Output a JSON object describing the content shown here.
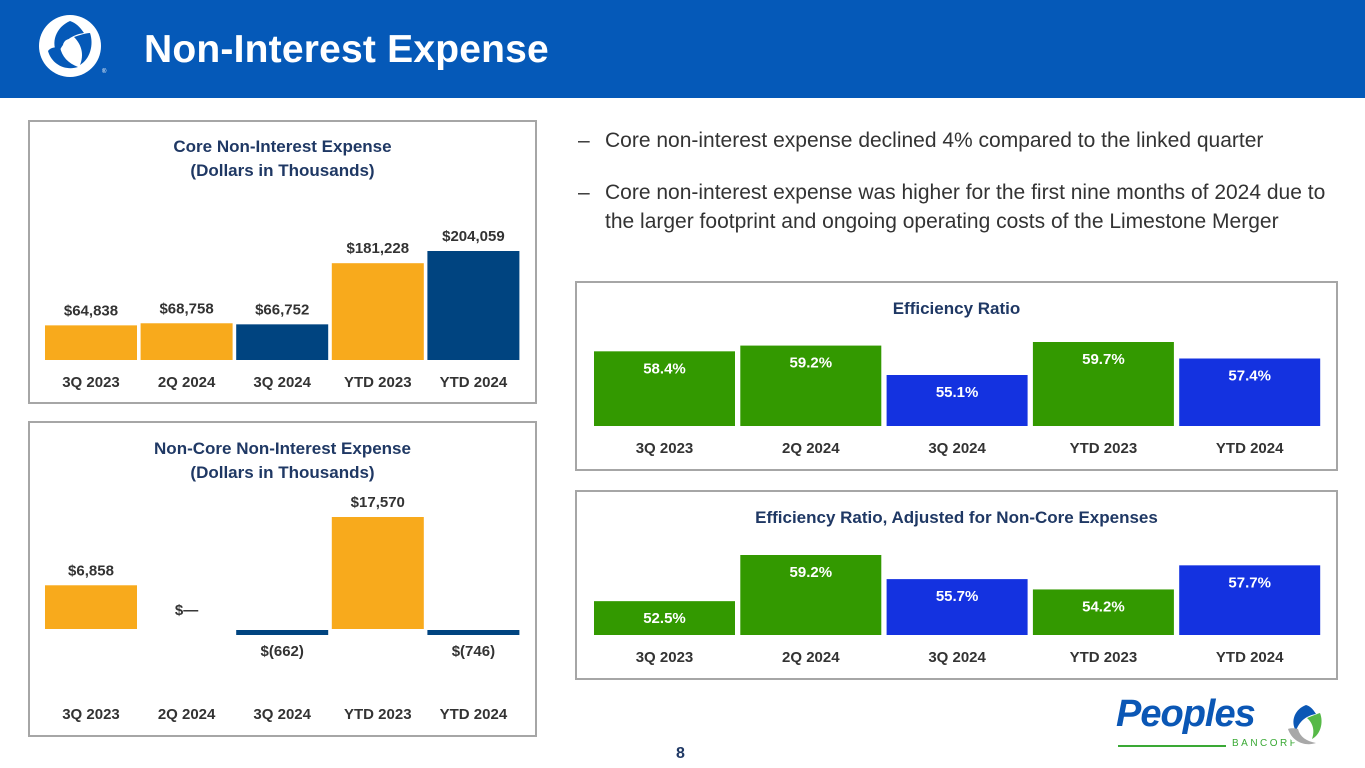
{
  "header": {
    "title": "Non-Interest Expense",
    "logo_icon": "peoples-swirl-logo-icon",
    "header_color": "#0559b8"
  },
  "bullets": [
    "Core non-interest expense declined 4% compared to the linked quarter",
    "Core non-interest expense was higher for the first nine months of 2024 due to the larger footprint and ongoing operating costs of the Limestone Merger"
  ],
  "bullet_marker": "–",
  "footer": {
    "page_number": "8",
    "brand_name": "Peoples",
    "brand_sub": "BANCORP",
    "registered_mark": "®"
  },
  "colors": {
    "gold": "#f8aa1c",
    "navy": "#004480",
    "green": "#339900",
    "blue": "#1432e0",
    "title_navy": "#1f3864",
    "label_dark": "#333333"
  },
  "chart_data": [
    {
      "id": "core",
      "type": "bar",
      "title": "Core Non-Interest Expense",
      "subtitle": "(Dollars in Thousands)",
      "xlabel": "",
      "ylabel": "",
      "categories": [
        "3Q 2023",
        "2Q 2024",
        "3Q 2024",
        "YTD 2023",
        "YTD 2024"
      ],
      "values": [
        64838,
        68758,
        66752,
        181228,
        204059
      ],
      "labels": [
        "$64,838",
        "$68,758",
        "$66,752",
        "$181,228",
        "$204,059"
      ],
      "bar_colors": [
        "gold",
        "gold",
        "navy",
        "gold",
        "navy"
      ],
      "ylim": [
        0,
        204059
      ],
      "grid": false,
      "legend": "none"
    },
    {
      "id": "noncore",
      "type": "bar",
      "title": "Non-Core Non-Interest Expense",
      "subtitle": "(Dollars in Thousands)",
      "xlabel": "",
      "ylabel": "",
      "categories": [
        "3Q 2023",
        "2Q 2024",
        "3Q 2024",
        "YTD 2023",
        "YTD 2024"
      ],
      "values": [
        6858,
        0,
        -662,
        17570,
        -746
      ],
      "labels": [
        "$6,858",
        "$—",
        "$(662)",
        "$17,570",
        "$(746)"
      ],
      "bar_colors": [
        "gold",
        "gold",
        "navy",
        "gold",
        "navy"
      ],
      "ylim": [
        -746,
        17570
      ],
      "grid": false,
      "legend": "none"
    },
    {
      "id": "eff",
      "type": "bar",
      "title": "Efficiency Ratio",
      "subtitle": "",
      "xlabel": "",
      "ylabel": "",
      "categories": [
        "3Q 2023",
        "2Q 2024",
        "3Q 2024",
        "YTD 2023",
        "YTD 2024"
      ],
      "values": [
        58.4,
        59.2,
        55.1,
        59.7,
        57.4
      ],
      "labels": [
        "58.4%",
        "59.2%",
        "55.1%",
        "59.7%",
        "57.4%"
      ],
      "bar_colors": [
        "green",
        "green",
        "blue",
        "green",
        "blue"
      ],
      "ylim": [
        50.5,
        59.7
      ],
      "grid": false,
      "legend": "none"
    },
    {
      "id": "effadj",
      "type": "bar",
      "title": "Efficiency Ratio, Adjusted for Non-Core Expenses",
      "subtitle": "",
      "xlabel": "",
      "ylabel": "",
      "categories": [
        "3Q 2023",
        "2Q 2024",
        "3Q 2024",
        "YTD 2023",
        "YTD 2024"
      ],
      "values": [
        52.5,
        59.2,
        55.7,
        54.2,
        57.7
      ],
      "labels": [
        "52.5%",
        "59.2%",
        "55.7%",
        "54.2%",
        "57.7%"
      ],
      "bar_colors": [
        "green",
        "green",
        "blue",
        "green",
        "blue"
      ],
      "ylim": [
        50.2,
        59.2
      ],
      "grid": false,
      "legend": "none"
    }
  ]
}
